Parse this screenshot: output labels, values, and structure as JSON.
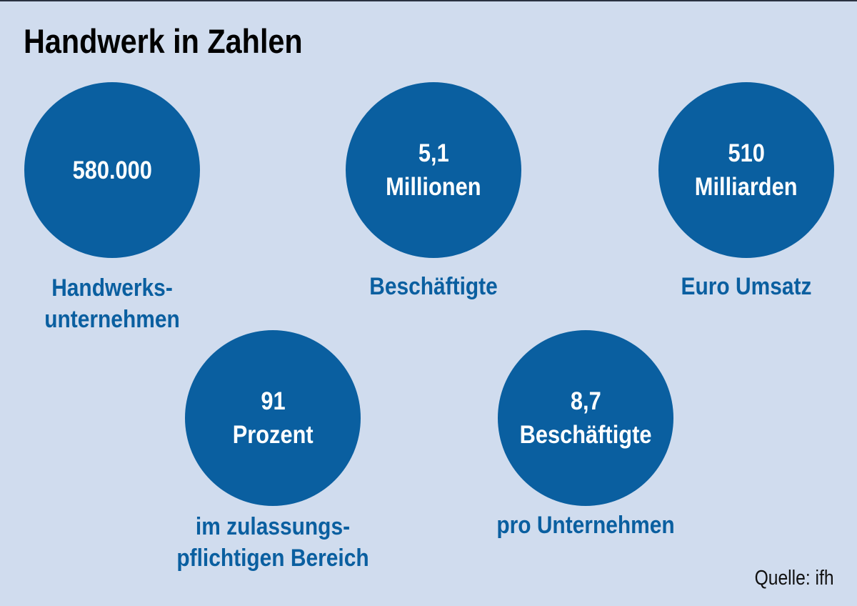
{
  "title": "Handwerk in Zahlen",
  "stats": [
    {
      "value_lines": [
        "580.000"
      ],
      "label_lines": [
        "Handwerks-",
        "unternehmen"
      ]
    },
    {
      "value_lines": [
        "5,1",
        "Millionen"
      ],
      "label_lines": [
        "Beschäftigte"
      ]
    },
    {
      "value_lines": [
        "510",
        "Milliarden"
      ],
      "label_lines": [
        "Euro Umsatz"
      ]
    },
    {
      "value_lines": [
        "91",
        "Prozent"
      ],
      "label_lines": [
        "im zulassungs-",
        "pflichtigen Bereich"
      ]
    },
    {
      "value_lines": [
        "8,7",
        "Beschäftigte"
      ],
      "label_lines": [
        "pro Unternehmen"
      ]
    }
  ],
  "source": "Quelle: ifh",
  "colors": {
    "background": "#d0dcee",
    "circle": "#0a5fa0",
    "label": "#0a5fa0"
  }
}
